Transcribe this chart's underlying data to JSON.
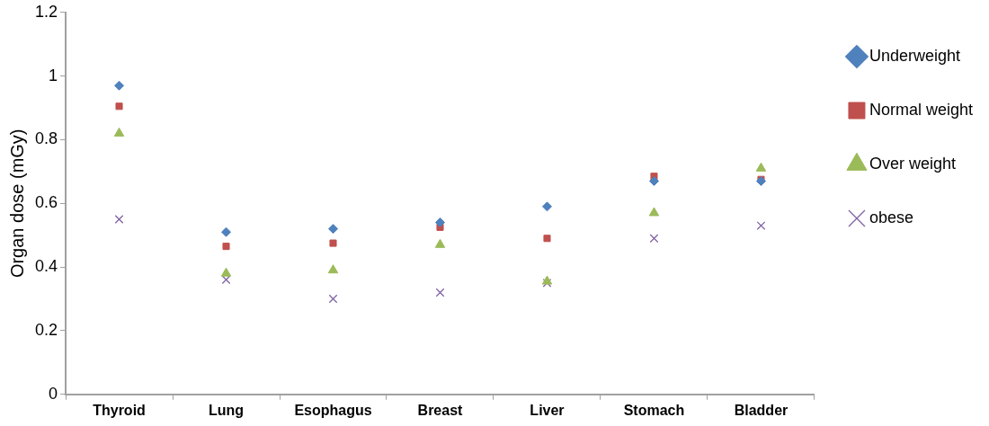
{
  "chart_data": {
    "type": "scatter",
    "ylabel": "Organ dose (mGy)",
    "categories": [
      "Thyroid",
      "Lung",
      "Esophagus",
      "Breast",
      "Liver",
      "Stomach",
      "Bladder"
    ],
    "series": [
      {
        "name": "obese",
        "color": "#8064a2",
        "marker": "cross",
        "values": [
          0.55,
          0.36,
          0.3,
          0.32,
          0.35,
          0.49,
          0.53
        ]
      },
      {
        "name": "Over weight",
        "color": "#9bbb59",
        "marker": "triangle",
        "values": [
          0.82,
          0.38,
          0.39,
          0.47,
          0.355,
          0.57,
          0.71
        ]
      },
      {
        "name": "Normal weight",
        "color": "#c0504d",
        "marker": "square",
        "values": [
          0.905,
          0.465,
          0.475,
          0.525,
          0.49,
          0.685,
          0.675
        ]
      },
      {
        "name": "Underweight",
        "color": "#4f81bd",
        "marker": "diamond",
        "values": [
          0.97,
          0.51,
          0.52,
          0.54,
          0.59,
          0.67,
          0.67
        ]
      }
    ],
    "ylim": [
      0,
      1.2
    ],
    "yticks": [
      0,
      0.2,
      0.4,
      0.6,
      0.8,
      1,
      1.2
    ],
    "grid": false,
    "legend": "right"
  }
}
